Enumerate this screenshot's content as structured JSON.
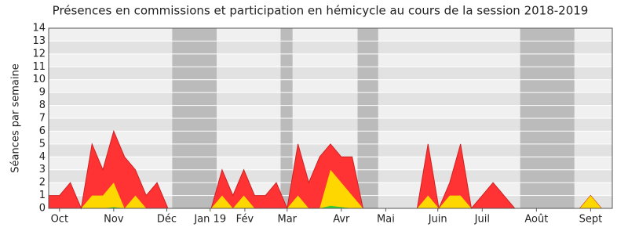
{
  "chart_data": {
    "type": "area",
    "title": "Présences en commissions et participation en hémicycle au cours de la session 2018-2019",
    "y_label": "Séances par semaine",
    "x": [
      0,
      1,
      2,
      3,
      4,
      5,
      6,
      7,
      8,
      9,
      10,
      11,
      12,
      13,
      14,
      15,
      16,
      17,
      18,
      19,
      20,
      21,
      22,
      23,
      24,
      25,
      26,
      27,
      28,
      29,
      30,
      31,
      32,
      33,
      34,
      35,
      36,
      37,
      38,
      39,
      40,
      41,
      42,
      43,
      44,
      45,
      46,
      47,
      48,
      49,
      50,
      51,
      52
    ],
    "series": [
      {
        "color": "#ff3333",
        "values": [
          1,
          1,
          2,
          0,
          5,
          3,
          6,
          4,
          3,
          1,
          2,
          0,
          0,
          0,
          0,
          0,
          3,
          1,
          3,
          1,
          1,
          2,
          0,
          5,
          2,
          4,
          5,
          4,
          4,
          0,
          0,
          0,
          0,
          0,
          0,
          5,
          0,
          2,
          5,
          0,
          1,
          2,
          1,
          0,
          0,
          0,
          0,
          0,
          0,
          0,
          1,
          0,
          0
        ]
      },
      {
        "color": "#ffd700",
        "values": [
          0,
          0,
          0,
          0,
          1,
          1,
          2,
          0,
          1,
          0,
          0,
          0,
          0,
          0,
          0,
          0,
          1,
          0,
          1,
          0,
          0,
          0,
          0,
          1,
          0,
          0,
          3,
          2,
          1,
          0,
          0,
          0,
          0,
          0,
          0,
          1,
          0,
          1,
          1,
          0,
          0,
          0,
          0,
          0,
          0,
          0,
          0,
          0,
          0,
          0,
          1,
          0,
          0
        ]
      },
      {
        "color": "#33cc33",
        "values": [
          0,
          0,
          0,
          0,
          0,
          0,
          0.1,
          0,
          0,
          0,
          0,
          0,
          0,
          0,
          0,
          0,
          0,
          0,
          0,
          0,
          0,
          0,
          0,
          0,
          0,
          0,
          0.2,
          0.1,
          0,
          0,
          0,
          0,
          0,
          0,
          0,
          0,
          0,
          0,
          0,
          0,
          0,
          0,
          0,
          0,
          0,
          0,
          0,
          0,
          0,
          0,
          0,
          0,
          0
        ]
      }
    ],
    "shaded_ranges": [
      [
        11.4,
        15.5
      ],
      [
        21.4,
        22.5
      ],
      [
        28.5,
        30.4
      ],
      [
        43.5,
        48.5
      ]
    ],
    "shade_color": "#bbbbbb",
    "xlim": [
      0,
      52
    ],
    "xticks": [
      {
        "value": 1,
        "label": "Oct"
      },
      {
        "value": 6,
        "label": "Nov"
      },
      {
        "value": 10.9,
        "label": "Déc"
      },
      {
        "value": 14.9,
        "label": "Jan 19"
      },
      {
        "value": 18.1,
        "label": "Fév"
      },
      {
        "value": 22,
        "label": "Mar"
      },
      {
        "value": 27,
        "label": "Avr"
      },
      {
        "value": 31.1,
        "label": "Mai"
      },
      {
        "value": 35.9,
        "label": "Juin"
      },
      {
        "value": 40,
        "label": "Juil"
      },
      {
        "value": 45,
        "label": "Août"
      },
      {
        "value": 50,
        "label": "Sept"
      }
    ],
    "ylim": [
      0,
      14
    ],
    "yticks": [
      0,
      1,
      2,
      3,
      4,
      5,
      6,
      7,
      8,
      9,
      10,
      11,
      12,
      13,
      14
    ],
    "grid": true
  }
}
